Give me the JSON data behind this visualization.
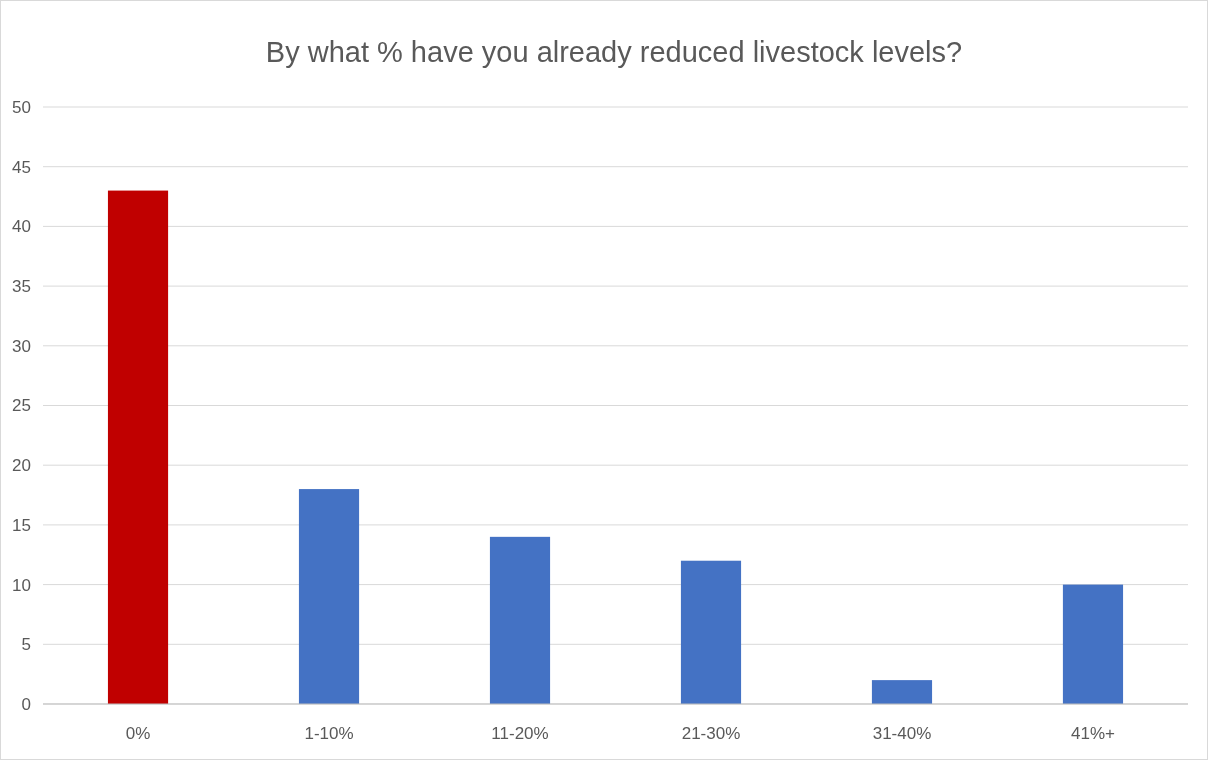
{
  "chart_data": {
    "type": "bar",
    "title": "By what % have you already reduced livestock levels?",
    "categories": [
      "0%",
      "1-10%",
      "11-20%",
      "21-30%",
      "31-40%",
      "41%+"
    ],
    "values": [
      43,
      18,
      14,
      12,
      2,
      10
    ],
    "colors": [
      "#c00000",
      "#4472c4",
      "#4472c4",
      "#4472c4",
      "#4472c4",
      "#4472c4"
    ],
    "ylim": [
      0,
      50
    ],
    "yticks": [
      0,
      5,
      10,
      15,
      20,
      25,
      30,
      35,
      40,
      45,
      50
    ],
    "grid": "y"
  }
}
